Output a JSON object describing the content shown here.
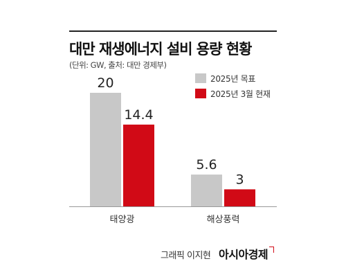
{
  "header": {
    "title": "대만 재생에너지 설비 용량 현황",
    "subtitle": "(단위: GW, 출처: 대만 경제부)"
  },
  "footer": {
    "credit": "그래픽 이지현",
    "brand": "아시아경제"
  },
  "colors": {
    "target": "#c8c8c8",
    "current": "#d10a16",
    "axis": "#999999",
    "text": "#222222"
  },
  "chart_data": {
    "type": "bar",
    "categories": [
      "태양광",
      "해상풍력"
    ],
    "series": [
      {
        "name": "2025년 목표",
        "values": [
          20,
          5.6
        ],
        "color": "#c8c8c8"
      },
      {
        "name": "2025년 3월 현재",
        "values": [
          14.4,
          3
        ],
        "color": "#d10a16"
      }
    ],
    "data_labels": [
      [
        "20",
        "5.6"
      ],
      [
        "14.4",
        "3"
      ]
    ],
    "title": "대만 재생에너지 설비 용량 현황",
    "unit": "GW",
    "ylim": [
      0,
      20
    ],
    "grid": false,
    "legend_position": "top-right"
  }
}
